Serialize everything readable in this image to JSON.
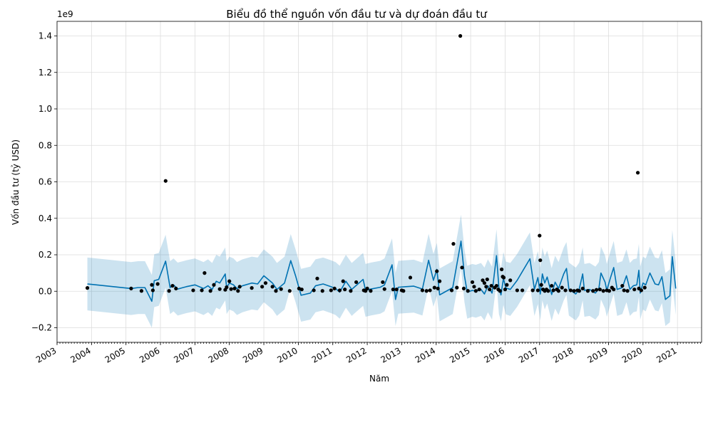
{
  "chart_data": {
    "type": "line",
    "title": "Biểu đồ thể nguồn vốn đầu tư và dự đoán đầu tư",
    "xlabel": "Năm",
    "ylabel": "Vốn đầu tư (tỷ USD)",
    "y_offset_label": "1e9",
    "xlim": [
      2003.0,
      2021.7
    ],
    "ylim": [
      -0.28,
      1.48
    ],
    "grid": true,
    "x_ticks": [
      {
        "value": 2003,
        "label": "2003"
      },
      {
        "value": 2004,
        "label": "2004"
      },
      {
        "value": 2005,
        "label": "2005"
      },
      {
        "value": 2006,
        "label": "2006"
      },
      {
        "value": 2007,
        "label": "2007"
      },
      {
        "value": 2008,
        "label": "2008"
      },
      {
        "value": 2009,
        "label": "2009"
      },
      {
        "value": 2010,
        "label": "2010"
      },
      {
        "value": 2011,
        "label": "2011"
      },
      {
        "value": 2012,
        "label": "2012"
      },
      {
        "value": 2013,
        "label": "2013"
      },
      {
        "value": 2014,
        "label": "2014"
      },
      {
        "value": 2015,
        "label": "2015"
      },
      {
        "value": 2016,
        "label": "2016"
      },
      {
        "value": 2017,
        "label": "2017"
      },
      {
        "value": 2018,
        "label": "2018"
      },
      {
        "value": 2019,
        "label": "2019"
      },
      {
        "value": 2020,
        "label": "2020"
      },
      {
        "value": 2021,
        "label": "2021"
      }
    ],
    "y_ticks": [
      {
        "value": -0.2,
        "label": "−0.2"
      },
      {
        "value": 0.0,
        "label": "0.0"
      },
      {
        "value": 0.2,
        "label": "0.2"
      },
      {
        "value": 0.4,
        "label": "0.4"
      },
      {
        "value": 0.6,
        "label": "0.6"
      },
      {
        "value": 0.8,
        "label": "0.8"
      },
      {
        "value": 1.0,
        "label": "1.0"
      },
      {
        "value": 1.2,
        "label": "1.2"
      },
      {
        "value": 1.4,
        "label": "1.4"
      }
    ],
    "colors": {
      "forecast_line": "#0072b2",
      "uncertainty_band": "#0072b2",
      "observed_points": "#000000",
      "grid": "#dddddd"
    },
    "observed": [
      [
        2003.88,
        0.018
      ],
      [
        2005.15,
        0.015
      ],
      [
        2005.45,
        0.002
      ],
      [
        2005.75,
        0.035
      ],
      [
        2005.78,
        0.005
      ],
      [
        2005.92,
        0.04
      ],
      [
        2006.15,
        0.605
      ],
      [
        2006.25,
        0.002
      ],
      [
        2006.35,
        0.03
      ],
      [
        2006.45,
        0.015
      ],
      [
        2006.95,
        0.005
      ],
      [
        2007.2,
        0.005
      ],
      [
        2007.28,
        0.1
      ],
      [
        2007.45,
        0.002
      ],
      [
        2007.55,
        0.035
      ],
      [
        2007.72,
        0.012
      ],
      [
        2007.88,
        0.008
      ],
      [
        2007.92,
        0.022
      ],
      [
        2008.0,
        0.055
      ],
      [
        2008.05,
        0.012
      ],
      [
        2008.15,
        0.015
      ],
      [
        2008.25,
        0.002
      ],
      [
        2008.3,
        0.025
      ],
      [
        2008.65,
        0.018
      ],
      [
        2008.95,
        0.025
      ],
      [
        2009.05,
        0.045
      ],
      [
        2009.25,
        0.025
      ],
      [
        2009.35,
        0.002
      ],
      [
        2009.5,
        0.012
      ],
      [
        2009.75,
        0.002
      ],
      [
        2010.02,
        0.015
      ],
      [
        2010.1,
        0.01
      ],
      [
        2010.45,
        0.005
      ],
      [
        2010.55,
        0.07
      ],
      [
        2010.7,
        0.002
      ],
      [
        2010.95,
        0.005
      ],
      [
        2011.05,
        0.015
      ],
      [
        2011.2,
        0.005
      ],
      [
        2011.3,
        0.055
      ],
      [
        2011.35,
        0.01
      ],
      [
        2011.52,
        0.002
      ],
      [
        2011.68,
        0.05
      ],
      [
        2011.9,
        0.005
      ],
      [
        2011.95,
        0.002
      ],
      [
        2012.0,
        0.015
      ],
      [
        2012.1,
        0.002
      ],
      [
        2012.45,
        0.05
      ],
      [
        2012.5,
        0.012
      ],
      [
        2012.75,
        0.01
      ],
      [
        2012.85,
        0.01
      ],
      [
        2013.0,
        0.005
      ],
      [
        2013.05,
        0.002
      ],
      [
        2013.25,
        0.075
      ],
      [
        2013.6,
        0.005
      ],
      [
        2013.72,
        0.002
      ],
      [
        2013.82,
        0.005
      ],
      [
        2013.95,
        0.02
      ],
      [
        2014.02,
        0.11
      ],
      [
        2014.05,
        0.015
      ],
      [
        2014.1,
        0.055
      ],
      [
        2014.45,
        0.005
      ],
      [
        2014.5,
        0.26
      ],
      [
        2014.6,
        0.02
      ],
      [
        2014.7,
        1.4
      ],
      [
        2014.75,
        0.13
      ],
      [
        2014.8,
        0.015
      ],
      [
        2014.92,
        0.002
      ],
      [
        2015.05,
        0.05
      ],
      [
        2015.1,
        0.025
      ],
      [
        2015.15,
        0.002
      ],
      [
        2015.25,
        0.01
      ],
      [
        2015.35,
        0.06
      ],
      [
        2015.4,
        0.045
      ],
      [
        2015.45,
        0.025
      ],
      [
        2015.48,
        0.065
      ],
      [
        2015.55,
        0.01
      ],
      [
        2015.6,
        0.03
      ],
      [
        2015.7,
        0.02
      ],
      [
        2015.75,
        0.03
      ],
      [
        2015.8,
        0.01
      ],
      [
        2015.85,
        0.002
      ],
      [
        2015.9,
        0.12
      ],
      [
        2015.93,
        0.08
      ],
      [
        2015.96,
        0.075
      ],
      [
        2016.0,
        0.01
      ],
      [
        2016.05,
        0.035
      ],
      [
        2016.15,
        0.06
      ],
      [
        2016.35,
        0.005
      ],
      [
        2016.5,
        0.005
      ],
      [
        2016.8,
        0.005
      ],
      [
        2016.95,
        0.005
      ],
      [
        2017.0,
        0.305
      ],
      [
        2017.02,
        0.17
      ],
      [
        2017.05,
        0.035
      ],
      [
        2017.1,
        0.01
      ],
      [
        2017.15,
        0.002
      ],
      [
        2017.2,
        0.01
      ],
      [
        2017.25,
        0.002
      ],
      [
        2017.35,
        0.03
      ],
      [
        2017.4,
        0.005
      ],
      [
        2017.5,
        0.01
      ],
      [
        2017.55,
        0.002
      ],
      [
        2017.65,
        0.02
      ],
      [
        2017.75,
        0.005
      ],
      [
        2017.9,
        0.005
      ],
      [
        2018.0,
        0.002
      ],
      [
        2018.1,
        0.005
      ],
      [
        2018.15,
        0.002
      ],
      [
        2018.25,
        0.015
      ],
      [
        2018.4,
        0.002
      ],
      [
        2018.55,
        0.002
      ],
      [
        2018.65,
        0.008
      ],
      [
        2018.75,
        0.01
      ],
      [
        2018.85,
        0.002
      ],
      [
        2018.95,
        0.005
      ],
      [
        2019.02,
        0.002
      ],
      [
        2019.1,
        0.02
      ],
      [
        2019.15,
        0.01
      ],
      [
        2019.4,
        0.03
      ],
      [
        2019.45,
        0.005
      ],
      [
        2019.55,
        0.002
      ],
      [
        2019.75,
        0.01
      ],
      [
        2019.85,
        0.65
      ],
      [
        2019.88,
        0.015
      ],
      [
        2019.95,
        0.005
      ],
      [
        2020.05,
        0.02
      ]
    ],
    "forecast": [
      [
        2003.88,
        0.04
      ],
      [
        2005.15,
        0.015
      ],
      [
        2005.35,
        0.02
      ],
      [
        2005.55,
        0.02
      ],
      [
        2005.75,
        -0.055
      ],
      [
        2005.82,
        0.058
      ],
      [
        2005.95,
        0.065
      ],
      [
        2006.15,
        0.165
      ],
      [
        2006.28,
        0.02
      ],
      [
        2006.38,
        0.035
      ],
      [
        2006.5,
        0.012
      ],
      [
        2006.75,
        0.025
      ],
      [
        2007.0,
        0.035
      ],
      [
        2007.25,
        0.015
      ],
      [
        2007.38,
        0.03
      ],
      [
        2007.5,
        0.01
      ],
      [
        2007.62,
        0.055
      ],
      [
        2007.72,
        0.045
      ],
      [
        2007.88,
        0.095
      ],
      [
        2007.92,
        0.02
      ],
      [
        2008.0,
        0.045
      ],
      [
        2008.12,
        0.035
      ],
      [
        2008.22,
        0.015
      ],
      [
        2008.38,
        0.03
      ],
      [
        2008.65,
        0.045
      ],
      [
        2008.82,
        0.04
      ],
      [
        2009.0,
        0.085
      ],
      [
        2009.25,
        0.045
      ],
      [
        2009.38,
        0.01
      ],
      [
        2009.6,
        0.045
      ],
      [
        2009.78,
        0.168
      ],
      [
        2009.92,
        0.085
      ],
      [
        2010.08,
        -0.022
      ],
      [
        2010.35,
        -0.01
      ],
      [
        2010.5,
        0.03
      ],
      [
        2010.72,
        0.04
      ],
      [
        2010.95,
        0.025
      ],
      [
        2011.08,
        0.015
      ],
      [
        2011.2,
        -0.005
      ],
      [
        2011.38,
        0.055
      ],
      [
        2011.55,
        0.01
      ],
      [
        2011.62,
        0.022
      ],
      [
        2011.88,
        0.065
      ],
      [
        2011.95,
        0.005
      ],
      [
        2012.1,
        0.012
      ],
      [
        2012.38,
        0.022
      ],
      [
        2012.5,
        0.035
      ],
      [
        2012.72,
        0.145
      ],
      [
        2012.82,
        -0.045
      ],
      [
        2012.9,
        0.022
      ],
      [
        2013.12,
        0.025
      ],
      [
        2013.35,
        0.028
      ],
      [
        2013.6,
        0.012
      ],
      [
        2013.78,
        0.17
      ],
      [
        2013.92,
        0.06
      ],
      [
        2014.02,
        0.12
      ],
      [
        2014.1,
        -0.02
      ],
      [
        2014.48,
        0.02
      ],
      [
        2014.72,
        0.275
      ],
      [
        2014.82,
        0.085
      ],
      [
        2014.9,
        -0.005
      ],
      [
        2015.05,
        0.005
      ],
      [
        2015.15,
        0.0
      ],
      [
        2015.3,
        0.01
      ],
      [
        2015.4,
        -0.015
      ],
      [
        2015.5,
        0.03
      ],
      [
        2015.62,
        -0.01
      ],
      [
        2015.75,
        0.195
      ],
      [
        2015.82,
        0.02
      ],
      [
        2015.88,
        -0.02
      ],
      [
        2015.95,
        0.07
      ],
      [
        2016.02,
        0.018
      ],
      [
        2016.15,
        0.01
      ],
      [
        2016.35,
        0.06
      ],
      [
        2016.5,
        0.108
      ],
      [
        2016.72,
        0.178
      ],
      [
        2016.85,
        0.01
      ],
      [
        2016.95,
        0.075
      ],
      [
        2017.02,
        -0.015
      ],
      [
        2017.08,
        0.095
      ],
      [
        2017.15,
        0.045
      ],
      [
        2017.22,
        0.078
      ],
      [
        2017.35,
        -0.018
      ],
      [
        2017.45,
        0.05
      ],
      [
        2017.55,
        0.015
      ],
      [
        2017.7,
        0.095
      ],
      [
        2017.78,
        0.125
      ],
      [
        2017.85,
        0.012
      ],
      [
        2018.05,
        -0.015
      ],
      [
        2018.15,
        0.012
      ],
      [
        2018.25,
        0.095
      ],
      [
        2018.3,
        0.005
      ],
      [
        2018.45,
        0.01
      ],
      [
        2018.62,
        -0.01
      ],
      [
        2018.72,
        0.015
      ],
      [
        2018.78,
        0.1
      ],
      [
        2018.9,
        0.05
      ],
      [
        2018.95,
        0.005
      ],
      [
        2019.05,
        0.07
      ],
      [
        2019.15,
        0.13
      ],
      [
        2019.25,
        0.01
      ],
      [
        2019.4,
        0.02
      ],
      [
        2019.52,
        0.085
      ],
      [
        2019.62,
        0.01
      ],
      [
        2019.72,
        0.03
      ],
      [
        2019.82,
        0.035
      ],
      [
        2019.88,
        0.115
      ],
      [
        2019.92,
        -0.01
      ],
      [
        2020.0,
        0.045
      ],
      [
        2020.08,
        0.035
      ],
      [
        2020.2,
        0.1
      ],
      [
        2020.35,
        0.04
      ],
      [
        2020.45,
        0.035
      ],
      [
        2020.55,
        0.08
      ],
      [
        2020.65,
        -0.045
      ],
      [
        2020.78,
        -0.025
      ],
      [
        2020.85,
        0.19
      ],
      [
        2020.95,
        0.015
      ]
    ],
    "uncertainty_halfwidth": 0.145
  }
}
